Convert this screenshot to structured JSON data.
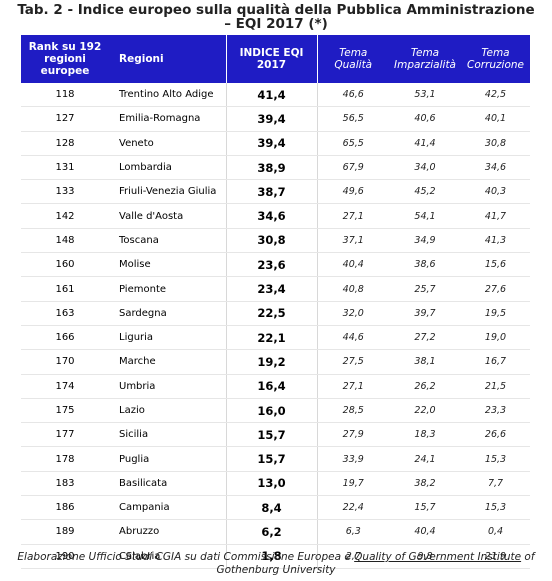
{
  "title": {
    "line1": "Tab. 2 - Indice europeo sulla qualità della Pubblica Amministrazione",
    "line2": "– EQI   2017 (*)"
  },
  "table": {
    "headers": {
      "rank": "Rank su 192 regioni europee",
      "region": "Regioni",
      "index": "INDICE EQI 2017",
      "quality": "Tema Qualità",
      "impartiality": "Tema Imparzialità",
      "corruption": "Tema Corruzione"
    },
    "rows": [
      {
        "rank": "118",
        "region": "Trentino Alto Adige",
        "index": "41,4",
        "quality": "46,6",
        "impartiality": "53,1",
        "corruption": "42,5"
      },
      {
        "rank": "127",
        "region": "Emilia-Romagna",
        "index": "39,4",
        "quality": "56,5",
        "impartiality": "40,6",
        "corruption": "40,1"
      },
      {
        "rank": "128",
        "region": "Veneto",
        "index": "39,4",
        "quality": "65,5",
        "impartiality": "41,4",
        "corruption": "30,8"
      },
      {
        "rank": "131",
        "region": "Lombardia",
        "index": "38,9",
        "quality": "67,9",
        "impartiality": "34,0",
        "corruption": "34,6"
      },
      {
        "rank": "133",
        "region": "Friuli-Venezia Giulia",
        "index": "38,7",
        "quality": "49,6",
        "impartiality": "45,2",
        "corruption": "40,3"
      },
      {
        "rank": "142",
        "region": "Valle d'Aosta",
        "index": "34,6",
        "quality": "27,1",
        "impartiality": "54,1",
        "corruption": "41,7"
      },
      {
        "rank": "148",
        "region": "Toscana",
        "index": "30,8",
        "quality": "37,1",
        "impartiality": "34,9",
        "corruption": "41,3"
      },
      {
        "rank": "160",
        "region": "Molise",
        "index": "23,6",
        "quality": "40,4",
        "impartiality": "38,6",
        "corruption": "15,6"
      },
      {
        "rank": "161",
        "region": "Piemonte",
        "index": "23,4",
        "quality": "40,8",
        "impartiality": "25,7",
        "corruption": "27,6"
      },
      {
        "rank": "163",
        "region": "Sardegna",
        "index": "22,5",
        "quality": "32,0",
        "impartiality": "39,7",
        "corruption": "19,5"
      },
      {
        "rank": "166",
        "region": "Liguria",
        "index": "22,1",
        "quality": "44,6",
        "impartiality": "27,2",
        "corruption": "19,0"
      },
      {
        "rank": "170",
        "region": "Marche",
        "index": "19,2",
        "quality": "27,5",
        "impartiality": "38,1",
        "corruption": "16,7"
      },
      {
        "rank": "174",
        "region": "Umbria",
        "index": "16,4",
        "quality": "27,1",
        "impartiality": "26,2",
        "corruption": "21,5"
      },
      {
        "rank": "175",
        "region": "Lazio",
        "index": "16,0",
        "quality": "28,5",
        "impartiality": "22,0",
        "corruption": "23,3"
      },
      {
        "rank": "177",
        "region": "Sicilia",
        "index": "15,7",
        "quality": "27,9",
        "impartiality": "18,3",
        "corruption": "26,6"
      },
      {
        "rank": "178",
        "region": "Puglia",
        "index": "15,7",
        "quality": "33,9",
        "impartiality": "24,1",
        "corruption": "15,3"
      },
      {
        "rank": "183",
        "region": "Basilicata",
        "index": "13,0",
        "quality": "19,7",
        "impartiality": "38,2",
        "corruption": "7,7"
      },
      {
        "rank": "186",
        "region": "Campania",
        "index": "8,4",
        "quality": "22,4",
        "impartiality": "15,7",
        "corruption": "15,3"
      },
      {
        "rank": "189",
        "region": "Abruzzo",
        "index": "6,2",
        "quality": "6,3",
        "impartiality": "40,4",
        "corruption": "0,4"
      },
      {
        "rank": "190",
        "region": "Calabria",
        "index": "1,8",
        "quality": "2,7",
        "impartiality": "9,8",
        "corruption": "21,9"
      }
    ]
  },
  "footer": {
    "prefix": "Elaborazione Ufficio Studi CGIA su dati Commissione Europea e ",
    "link": "Quality of Government Institute",
    "suffix": " of Gothenburg University"
  },
  "colors": {
    "header_bg": "#1f1cc4",
    "header_text": "#ffffff"
  }
}
